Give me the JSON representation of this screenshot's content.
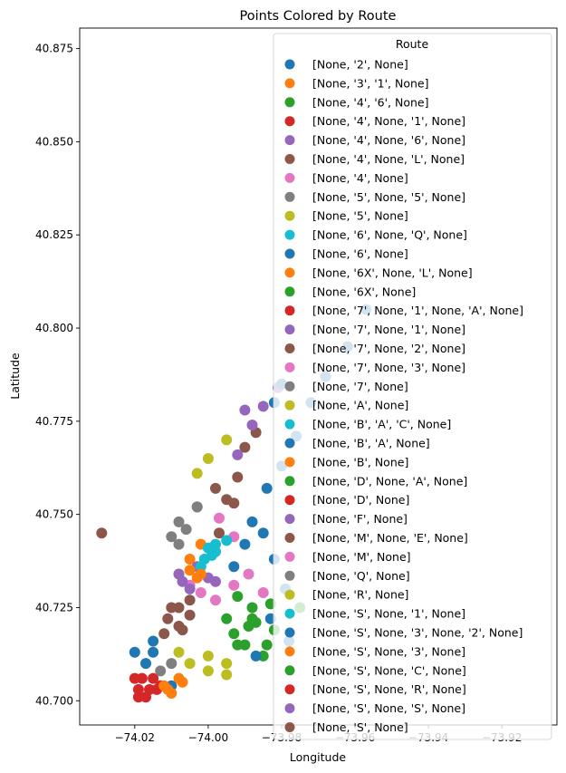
{
  "chart_data": {
    "type": "scatter",
    "title": "Points Colored by Route",
    "xlabel": "Longitude",
    "ylabel": "Latitude",
    "xlim": [
      -74.035,
      -73.905
    ],
    "ylim": [
      40.6935,
      40.8805
    ],
    "xticks": [
      -74.02,
      -74.0,
      -73.98,
      -73.96,
      -73.94,
      -73.92
    ],
    "xtick_labels": [
      "−74.02",
      "−74.00",
      "−73.98",
      "−73.96",
      "−73.94",
      "−73.92"
    ],
    "yticks": [
      40.7,
      40.725,
      40.75,
      40.775,
      40.8,
      40.825,
      40.85,
      40.875
    ],
    "ytick_labels": [
      "40.700",
      "40.725",
      "40.750",
      "40.775",
      "40.800",
      "40.825",
      "40.850",
      "40.875"
    ],
    "grid": false,
    "legend": {
      "title": "Route",
      "placement": "upper-right"
    },
    "series": [
      {
        "name": "[None, '2', None]",
        "color": "#1f77b4",
        "points": [
          [
            -73.957,
            40.805
          ],
          [
            -73.962,
            40.795
          ],
          [
            -73.968,
            40.787
          ],
          [
            -73.972,
            40.78
          ],
          [
            -73.976,
            40.771
          ],
          [
            -73.98,
            40.763
          ],
          [
            -73.984,
            40.757
          ],
          [
            -73.988,
            40.748
          ],
          [
            -73.99,
            40.742
          ],
          [
            -73.993,
            40.736
          ]
        ]
      },
      {
        "name": "[None, '3', '1', None]",
        "color": "#ff7f0e",
        "points": [
          [
            -74.003,
            40.733
          ],
          [
            -74.005,
            40.738
          ],
          [
            -74.002,
            40.742
          ],
          [
            -73.998,
            40.74
          ]
        ]
      },
      {
        "name": "[None, '4', '6', None]",
        "color": "#2ca02c",
        "points": [
          [
            -73.993,
            40.718
          ],
          [
            -73.99,
            40.715
          ],
          [
            -73.985,
            40.712
          ],
          [
            -73.982,
            40.719
          ],
          [
            -73.995,
            40.722
          ],
          [
            -73.988,
            40.725
          ]
        ]
      },
      {
        "name": "[None, '4', None, '1', None]",
        "color": "#d62728",
        "points": [
          [
            -74.013,
            40.704
          ],
          [
            -74.017,
            40.701
          ],
          [
            -74.015,
            40.706
          ]
        ]
      },
      {
        "name": "[None, '4', None, '6', None]",
        "color": "#9467bd",
        "points": [
          [
            -74.0,
            40.733
          ],
          [
            -74.003,
            40.736
          ],
          [
            -73.998,
            40.732
          ]
        ]
      },
      {
        "name": "[None, '4', None, 'L', None]",
        "color": "#8c564b",
        "points": [
          [
            -73.995,
            40.754
          ],
          [
            -73.992,
            40.76
          ],
          [
            -73.99,
            40.768
          ],
          [
            -73.987,
            40.772
          ],
          [
            -74.003,
            40.752
          ],
          [
            -73.998,
            40.757
          ]
        ]
      },
      {
        "name": "[None, '4', None]",
        "color": "#e377c2",
        "points": [
          [
            -74.002,
            40.729
          ],
          [
            -73.998,
            40.727
          ],
          [
            -74.005,
            40.731
          ],
          [
            -73.993,
            40.731
          ]
        ]
      },
      {
        "name": "[None, '5', None, '5', None]",
        "color": "#7f7f7f",
        "points": [
          [
            -74.006,
            40.746
          ],
          [
            -74.003,
            40.752
          ],
          [
            -74.008,
            40.742
          ]
        ]
      },
      {
        "name": "[None, '5', None]",
        "color": "#bcbd22",
        "points": [
          [
            -74.005,
            40.71
          ],
          [
            -74.0,
            40.712
          ],
          [
            -73.995,
            40.707
          ],
          [
            -74.008,
            40.713
          ]
        ]
      },
      {
        "name": "[None, '6', None, 'Q', None]",
        "color": "#17becf",
        "points": [
          [
            -74.001,
            40.738
          ],
          [
            -74.0,
            40.741
          ],
          [
            -74.002,
            40.736
          ]
        ]
      },
      {
        "name": "[None, '6', None]",
        "color": "#1f77b4",
        "points": [
          [
            -73.985,
            40.745
          ],
          [
            -73.982,
            40.738
          ],
          [
            -73.979,
            40.73
          ],
          [
            -73.983,
            40.722
          ],
          [
            -73.987,
            40.712
          ],
          [
            -73.978,
            40.716
          ]
        ]
      },
      {
        "name": "[None, '6X', None, 'L', None]",
        "color": "#ff7f0e",
        "points": [
          [
            -74.005,
            40.735
          ],
          [
            -74.002,
            40.734
          ],
          [
            -74.008,
            40.734
          ]
        ]
      },
      {
        "name": "[None, '6X', None]",
        "color": "#2ca02c",
        "points": [
          [
            -73.992,
            40.728
          ],
          [
            -73.989,
            40.72
          ],
          [
            -73.984,
            40.715
          ]
        ]
      },
      {
        "name": "[None, '7', None, '1', None, 'A', None]",
        "color": "#d62728",
        "points": [
          [
            -74.018,
            40.706
          ],
          [
            -74.014,
            40.703
          ]
        ]
      },
      {
        "name": "[None, '7', None, '1', None]",
        "color": "#9467bd",
        "points": [
          [
            -73.992,
            40.766
          ],
          [
            -73.988,
            40.774
          ],
          [
            -73.985,
            40.779
          ],
          [
            -73.981,
            40.784
          ]
        ]
      },
      {
        "name": "[None, '7', None, '2', None]",
        "color": "#8c564b",
        "points": [
          [
            -74.008,
            40.72
          ],
          [
            -74.005,
            40.723
          ],
          [
            -73.997,
            40.745
          ],
          [
            -73.993,
            40.753
          ]
        ]
      },
      {
        "name": "[None, '7', None, '3', None]",
        "color": "#e377c2",
        "points": [
          [
            -73.989,
            40.734
          ],
          [
            -73.985,
            40.729
          ]
        ]
      },
      {
        "name": "[None, '7', None]",
        "color": "#7f7f7f",
        "points": [
          [
            -74.013,
            40.708
          ],
          [
            -74.01,
            40.71
          ]
        ]
      },
      {
        "name": "[None, 'A', None]",
        "color": "#bcbd22",
        "points": [
          [
            -74.0,
            40.765
          ],
          [
            -73.995,
            40.77
          ],
          [
            -74.003,
            40.761
          ]
        ]
      },
      {
        "name": "[None, 'B', 'A', 'C', None]",
        "color": "#17becf",
        "points": [
          [
            -73.999,
            40.739
          ],
          [
            -73.998,
            40.742
          ]
        ]
      },
      {
        "name": "[None, 'B', 'A', None]",
        "color": "#1f77b4",
        "points": [
          [
            -74.01,
            40.704
          ],
          [
            -74.015,
            40.713
          ],
          [
            -73.982,
            40.78
          ],
          [
            -73.98,
            40.785
          ]
        ]
      },
      {
        "name": "[None, 'B', None]",
        "color": "#ff7f0e",
        "points": [
          [
            -74.012,
            40.704
          ],
          [
            -74.008,
            40.706
          ],
          [
            -74.01,
            40.702
          ]
        ]
      },
      {
        "name": "[None, 'D', None, 'A', None]",
        "color": "#2ca02c",
        "points": [
          [
            -73.988,
            40.722
          ],
          [
            -73.983,
            40.726
          ],
          [
            -73.975,
            40.725
          ]
        ]
      },
      {
        "name": "[None, 'D', None]",
        "color": "#d62728",
        "points": [
          [
            -74.019,
            40.701
          ],
          [
            -74.016,
            40.703
          ]
        ]
      },
      {
        "name": "[None, 'F', None]",
        "color": "#9467bd",
        "points": [
          [
            -74.007,
            40.732
          ],
          [
            -74.005,
            40.73
          ]
        ]
      },
      {
        "name": "[None, 'M', None, 'E', None]",
        "color": "#8c564b",
        "points": [
          [
            -74.008,
            40.725
          ],
          [
            -74.005,
            40.727
          ],
          [
            -74.012,
            40.718
          ]
        ]
      },
      {
        "name": "[None, 'M', None]",
        "color": "#e377c2",
        "points": [
          [
            -73.993,
            40.744
          ],
          [
            -73.997,
            40.749
          ]
        ]
      },
      {
        "name": "[None, 'Q', None]",
        "color": "#7f7f7f",
        "points": [
          [
            -74.01,
            40.744
          ],
          [
            -74.008,
            40.748
          ]
        ]
      },
      {
        "name": "[None, 'R', None]",
        "color": "#bcbd22",
        "points": [
          [
            -74.0,
            40.708
          ],
          [
            -73.995,
            40.71
          ]
        ]
      },
      {
        "name": "[None, 'S', None, '1', None]",
        "color": "#17becf",
        "points": [
          [
            -73.998,
            40.74
          ],
          [
            -73.995,
            40.743
          ]
        ]
      },
      {
        "name": "[None, 'S', None, '3', None, '2', None]",
        "color": "#1f77b4",
        "points": [
          [
            -74.02,
            40.713
          ],
          [
            -74.017,
            40.71
          ],
          [
            -74.015,
            40.716
          ]
        ]
      },
      {
        "name": "[None, 'S', None, '3', None]",
        "color": "#ff7f0e",
        "points": [
          [
            -74.011,
            40.703
          ],
          [
            -74.007,
            40.705
          ]
        ]
      },
      {
        "name": "[None, 'S', None, 'C', None]",
        "color": "#2ca02c",
        "points": [
          [
            -73.992,
            40.715
          ],
          [
            -73.987,
            40.721
          ]
        ]
      },
      {
        "name": "[None, 'S', None, 'R', None]",
        "color": "#d62728",
        "points": [
          [
            -74.02,
            40.706
          ],
          [
            -74.019,
            40.703
          ]
        ]
      },
      {
        "name": "[None, 'S', None, 'S', None]",
        "color": "#9467bd",
        "points": [
          [
            -74.008,
            40.734
          ],
          [
            -73.99,
            40.778
          ]
        ]
      },
      {
        "name": "[None, 'S', None]",
        "color": "#8c564b",
        "points": [
          [
            -74.029,
            40.745
          ],
          [
            -74.01,
            40.725
          ],
          [
            -74.007,
            40.719
          ],
          [
            -74.011,
            40.722
          ]
        ]
      }
    ]
  }
}
